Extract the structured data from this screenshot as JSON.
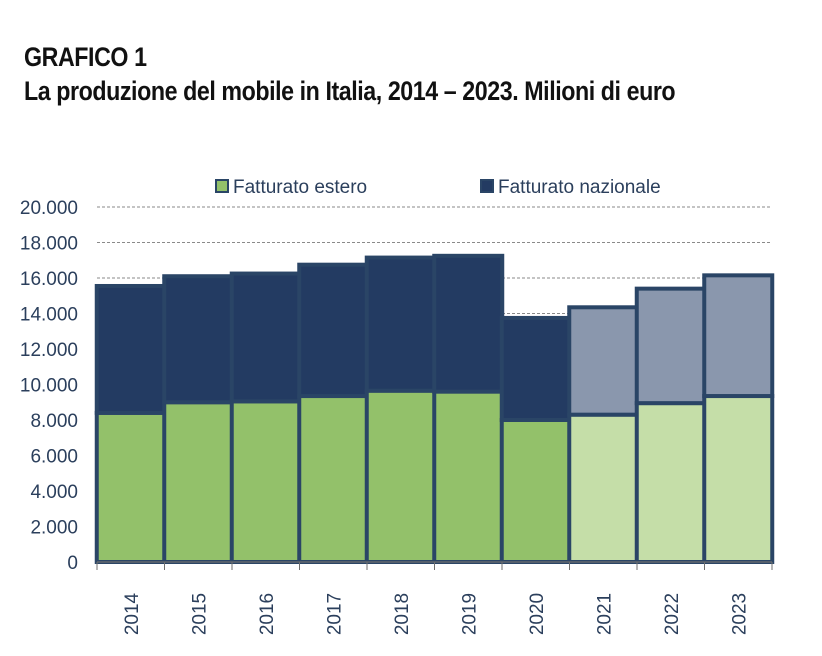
{
  "header": {
    "kicker": "GRAFICO 1",
    "title": "La produzione del mobile in Italia, 2014 – 2023. Milioni di euro"
  },
  "chart_data": {
    "type": "bar",
    "stacked": true,
    "categories": [
      "2014",
      "2015",
      "2016",
      "2017",
      "2018",
      "2019",
      "2020",
      "2021",
      "2022",
      "2023"
    ],
    "series": [
      {
        "name": "Fatturato estero",
        "values": [
          8400,
          9000,
          9050,
          9350,
          9650,
          9600,
          8000,
          8300,
          8950,
          9350
        ]
      },
      {
        "name": "Fatturato nazionale",
        "values": [
          7150,
          7100,
          7200,
          7400,
          7500,
          7650,
          5750,
          6050,
          6450,
          6800
        ]
      }
    ],
    "estimated_from_index": 7,
    "ylim": [
      0,
      20000
    ],
    "yticks": [
      "0",
      "2.000",
      "4.000",
      "6.000",
      "8.000",
      "10.000",
      "12.000",
      "14.000",
      "16.000",
      "18.000",
      "20.000"
    ],
    "grid": true,
    "legend_position": "top",
    "colors": {
      "estero": "#93c16a",
      "estero_light": "#c5dea8",
      "nazionale": "#233b62",
      "nazionale_light": "#8a97ad",
      "border": "#2a4566",
      "axis_text": "#2b3f5c"
    }
  }
}
